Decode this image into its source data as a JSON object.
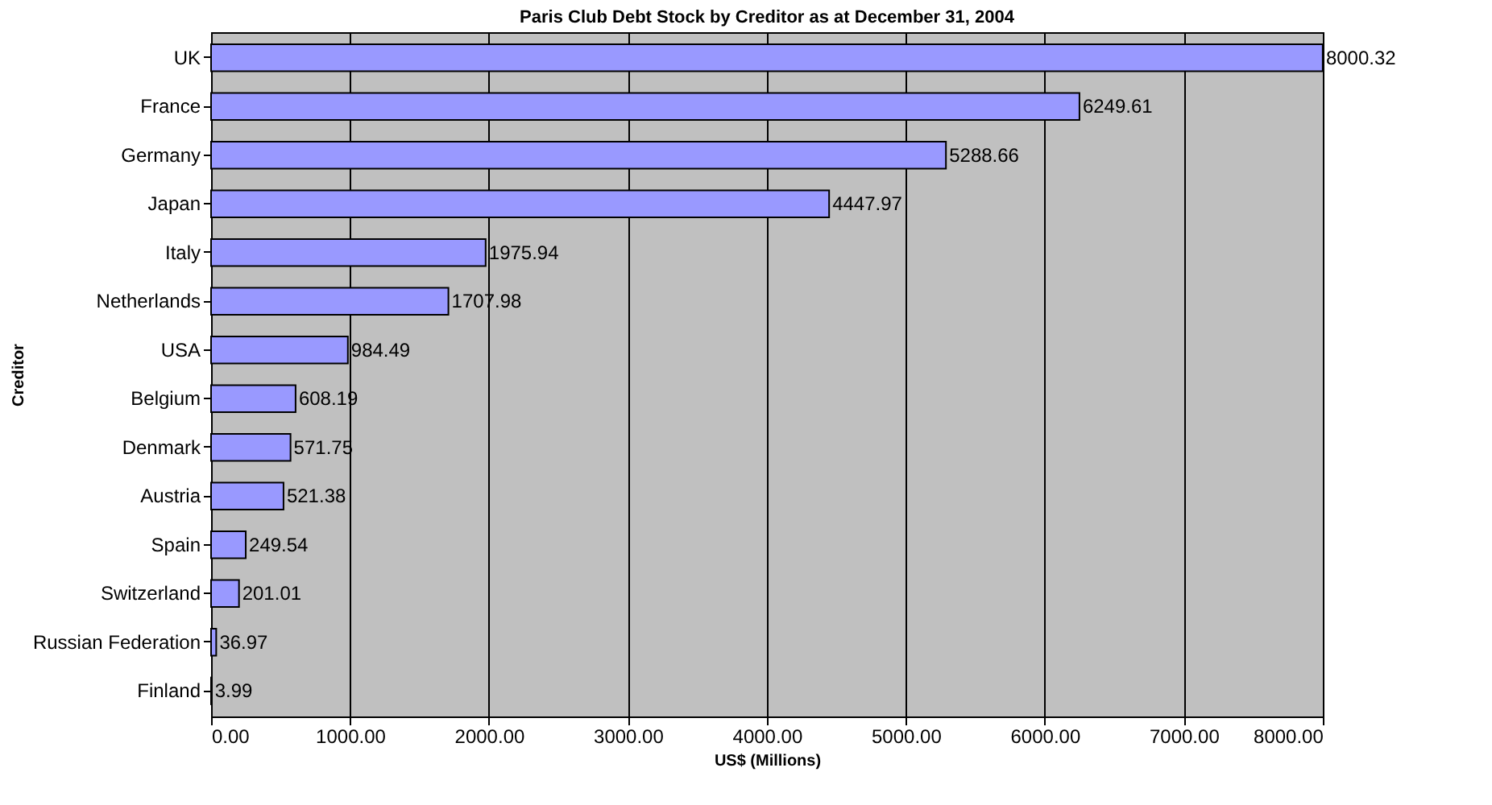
{
  "chart_data": {
    "type": "bar",
    "orientation": "horizontal",
    "title": "Paris Club Debt Stock by Creditor as at December 31, 2004",
    "xlabel": "US$ (Millions)",
    "ylabel": "Creditor",
    "categories": [
      "UK",
      "France",
      "Germany",
      "Japan",
      "Italy",
      "Netherlands",
      "USA",
      "Belgium",
      "Denmark",
      "Austria",
      "Spain",
      "Switzerland",
      "Russian Federation",
      "Finland"
    ],
    "values": [
      8000.32,
      6249.61,
      5288.66,
      4447.97,
      1975.94,
      1707.98,
      984.49,
      608.19,
      571.75,
      521.38,
      249.54,
      201.01,
      36.97,
      3.99
    ],
    "color": "#9999ff",
    "data_labels": true,
    "grid": "x",
    "xlim": [
      0,
      8001
    ],
    "xticks": [
      {
        "value": 0,
        "label": "0.00"
      },
      {
        "value": 1000,
        "label": "1000.00"
      },
      {
        "value": 2000,
        "label": "2000.00"
      },
      {
        "value": 3000,
        "label": "3000.00"
      },
      {
        "value": 4000,
        "label": "4000.00"
      },
      {
        "value": 5000,
        "label": "5000.00"
      },
      {
        "value": 6000,
        "label": "6000.00"
      },
      {
        "value": 7000,
        "label": "7000.00"
      },
      {
        "value": 8000,
        "label": "8000.00"
      }
    ]
  }
}
